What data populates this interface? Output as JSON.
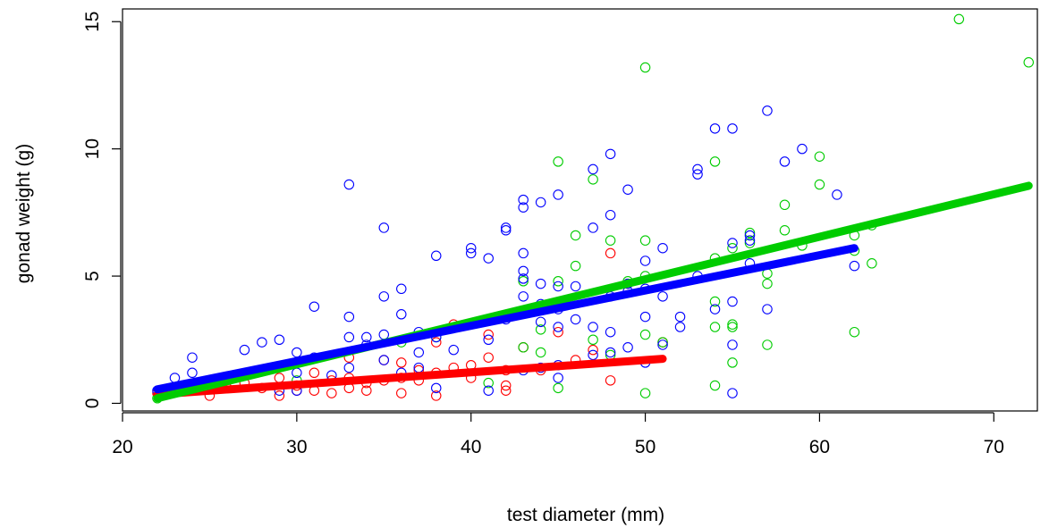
{
  "chart_data": {
    "type": "scatter",
    "title": "",
    "xlabel": "test diameter (mm)",
    "ylabel": "gonad weight (g)",
    "xlim": [
      20,
      72.5
    ],
    "ylim": [
      -0.3,
      15.5
    ],
    "x_ticks": [
      20,
      30,
      40,
      50,
      60,
      70
    ],
    "y_ticks": [
      0,
      5,
      10,
      15
    ],
    "x_tick_labels": [
      "20",
      "30",
      "40",
      "50",
      "60",
      "70"
    ],
    "y_tick_labels": [
      "0",
      "5",
      "10",
      "15"
    ],
    "grid": false,
    "legend": "none",
    "series": [
      {
        "color": "#ff0000",
        "marker": "open-circle",
        "points": [
          [
            22,
            0.4
          ],
          [
            23,
            0.5
          ],
          [
            24,
            0.5
          ],
          [
            25,
            0.3
          ],
          [
            26,
            0.6
          ],
          [
            27,
            0.8
          ],
          [
            28,
            0.6
          ],
          [
            29,
            0.3
          ],
          [
            29,
            1.0
          ],
          [
            30,
            0.5
          ],
          [
            30,
            0.7
          ],
          [
            31,
            0.5
          ],
          [
            31,
            1.2
          ],
          [
            32,
            0.4
          ],
          [
            32,
            0.9
          ],
          [
            33,
            0.6
          ],
          [
            33,
            1.0
          ],
          [
            33,
            1.8
          ],
          [
            34,
            0.5
          ],
          [
            34,
            0.8
          ],
          [
            35,
            0.9
          ],
          [
            35,
            1.7
          ],
          [
            36,
            0.4
          ],
          [
            36,
            1.0
          ],
          [
            36,
            1.6
          ],
          [
            37,
            0.9
          ],
          [
            37,
            1.3
          ],
          [
            38,
            0.3
          ],
          [
            38,
            1.2
          ],
          [
            38,
            2.4
          ],
          [
            39,
            1.4
          ],
          [
            39,
            3.1
          ],
          [
            40,
            1.0
          ],
          [
            40,
            1.5
          ],
          [
            41,
            1.8
          ],
          [
            41,
            2.7
          ],
          [
            42,
            0.5
          ],
          [
            42,
            0.7
          ],
          [
            42,
            1.3
          ],
          [
            43,
            2.2
          ],
          [
            44,
            1.3
          ],
          [
            45,
            2.8
          ],
          [
            46,
            1.7
          ],
          [
            47,
            2.1
          ],
          [
            48,
            0.9
          ],
          [
            48,
            5.9
          ],
          [
            49,
            4.7
          ],
          [
            51,
            2.4
          ]
        ],
        "fit_line": [
          [
            22,
            0.35
          ],
          [
            51,
            1.75
          ]
        ]
      },
      {
        "color": "#00cc00",
        "marker": "open-circle",
        "points": [
          [
            22,
            0.2
          ],
          [
            30,
            0.9
          ],
          [
            36,
            2.4
          ],
          [
            38,
            2.6
          ],
          [
            41,
            0.8
          ],
          [
            43,
            2.2
          ],
          [
            43,
            4.8
          ],
          [
            44,
            2.0
          ],
          [
            44,
            2.9
          ],
          [
            45,
            0.6
          ],
          [
            45,
            4.8
          ],
          [
            45,
            9.5
          ],
          [
            46,
            5.4
          ],
          [
            46,
            6.6
          ],
          [
            47,
            2.5
          ],
          [
            47,
            8.8
          ],
          [
            48,
            1.9
          ],
          [
            48,
            6.4
          ],
          [
            49,
            4.8
          ],
          [
            50,
            0.4
          ],
          [
            50,
            2.7
          ],
          [
            50,
            5.0
          ],
          [
            50,
            6.4
          ],
          [
            50,
            13.2
          ],
          [
            51,
            2.4
          ],
          [
            54,
            0.7
          ],
          [
            54,
            3.0
          ],
          [
            54,
            4.0
          ],
          [
            54,
            5.7
          ],
          [
            54,
            9.5
          ],
          [
            55,
            1.6
          ],
          [
            55,
            3.0
          ],
          [
            55,
            3.1
          ],
          [
            55,
            6.1
          ],
          [
            56,
            6.3
          ],
          [
            56,
            6.7
          ],
          [
            57,
            2.3
          ],
          [
            57,
            4.7
          ],
          [
            57,
            5.1
          ],
          [
            58,
            6.8
          ],
          [
            58,
            7.8
          ],
          [
            59,
            6.2
          ],
          [
            60,
            8.6
          ],
          [
            60,
            9.7
          ],
          [
            62,
            2.8
          ],
          [
            62,
            6.0
          ],
          [
            62,
            6.6
          ],
          [
            63,
            5.5
          ],
          [
            63,
            7.0
          ],
          [
            68,
            15.1
          ],
          [
            72,
            13.4
          ]
        ],
        "fit_line": [
          [
            22,
            0.2
          ],
          [
            72,
            8.55
          ]
        ]
      },
      {
        "color": "#0000ff",
        "marker": "open-circle",
        "points": [
          [
            22,
            0.5
          ],
          [
            23,
            1.0
          ],
          [
            24,
            1.2
          ],
          [
            24,
            1.8
          ],
          [
            27,
            2.1
          ],
          [
            28,
            1.3
          ],
          [
            28,
            2.4
          ],
          [
            29,
            0.5
          ],
          [
            29,
            2.5
          ],
          [
            30,
            0.5
          ],
          [
            30,
            1.2
          ],
          [
            30,
            2.0
          ],
          [
            31,
            1.8
          ],
          [
            31,
            3.8
          ],
          [
            32,
            1.1
          ],
          [
            33,
            1.4
          ],
          [
            33,
            2.6
          ],
          [
            33,
            3.4
          ],
          [
            33,
            8.6
          ],
          [
            34,
            2.3
          ],
          [
            34,
            2.6
          ],
          [
            35,
            1.7
          ],
          [
            35,
            2.7
          ],
          [
            35,
            4.2
          ],
          [
            35,
            6.9
          ],
          [
            36,
            1.2
          ],
          [
            36,
            3.5
          ],
          [
            36,
            4.5
          ],
          [
            37,
            1.4
          ],
          [
            37,
            2.0
          ],
          [
            37,
            2.8
          ],
          [
            38,
            0.6
          ],
          [
            38,
            2.6
          ],
          [
            38,
            5.8
          ],
          [
            39,
            2.1
          ],
          [
            40,
            5.9
          ],
          [
            40,
            6.1
          ],
          [
            41,
            0.5
          ],
          [
            41,
            2.5
          ],
          [
            41,
            5.7
          ],
          [
            42,
            3.3
          ],
          [
            42,
            6.8
          ],
          [
            42,
            6.9
          ],
          [
            43,
            1.3
          ],
          [
            43,
            4.2
          ],
          [
            43,
            4.9
          ],
          [
            43,
            5.2
          ],
          [
            43,
            5.9
          ],
          [
            43,
            7.7
          ],
          [
            43,
            8.0
          ],
          [
            44,
            1.4
          ],
          [
            44,
            3.2
          ],
          [
            44,
            3.9
          ],
          [
            44,
            4.7
          ],
          [
            44,
            7.9
          ],
          [
            45,
            1.0
          ],
          [
            45,
            1.5
          ],
          [
            45,
            3.0
          ],
          [
            45,
            3.7
          ],
          [
            45,
            4.6
          ],
          [
            45,
            8.2
          ],
          [
            46,
            3.3
          ],
          [
            46,
            4.6
          ],
          [
            47,
            1.9
          ],
          [
            47,
            3.0
          ],
          [
            47,
            6.9
          ],
          [
            47,
            9.2
          ],
          [
            48,
            2.0
          ],
          [
            48,
            2.8
          ],
          [
            48,
            4.2
          ],
          [
            48,
            7.4
          ],
          [
            48,
            9.8
          ],
          [
            49,
            2.2
          ],
          [
            49,
            4.4
          ],
          [
            49,
            4.7
          ],
          [
            49,
            8.4
          ],
          [
            50,
            1.6
          ],
          [
            50,
            3.4
          ],
          [
            50,
            4.5
          ],
          [
            50,
            5.6
          ],
          [
            51,
            2.3
          ],
          [
            51,
            4.2
          ],
          [
            51,
            6.1
          ],
          [
            52,
            3.0
          ],
          [
            52,
            3.4
          ],
          [
            53,
            5.0
          ],
          [
            53,
            9.0
          ],
          [
            53,
            9.2
          ],
          [
            54,
            3.7
          ],
          [
            54,
            10.8
          ],
          [
            55,
            0.4
          ],
          [
            55,
            2.3
          ],
          [
            55,
            4.0
          ],
          [
            55,
            6.3
          ],
          [
            55,
            10.8
          ],
          [
            56,
            5.5
          ],
          [
            56,
            6.4
          ],
          [
            56,
            6.6
          ],
          [
            57,
            3.7
          ],
          [
            57,
            11.5
          ],
          [
            58,
            9.5
          ],
          [
            59,
            10.0
          ],
          [
            61,
            8.2
          ],
          [
            62,
            5.4
          ]
        ],
        "fit_line": [
          [
            22,
            0.55
          ],
          [
            62,
            6.1
          ]
        ]
      }
    ]
  }
}
